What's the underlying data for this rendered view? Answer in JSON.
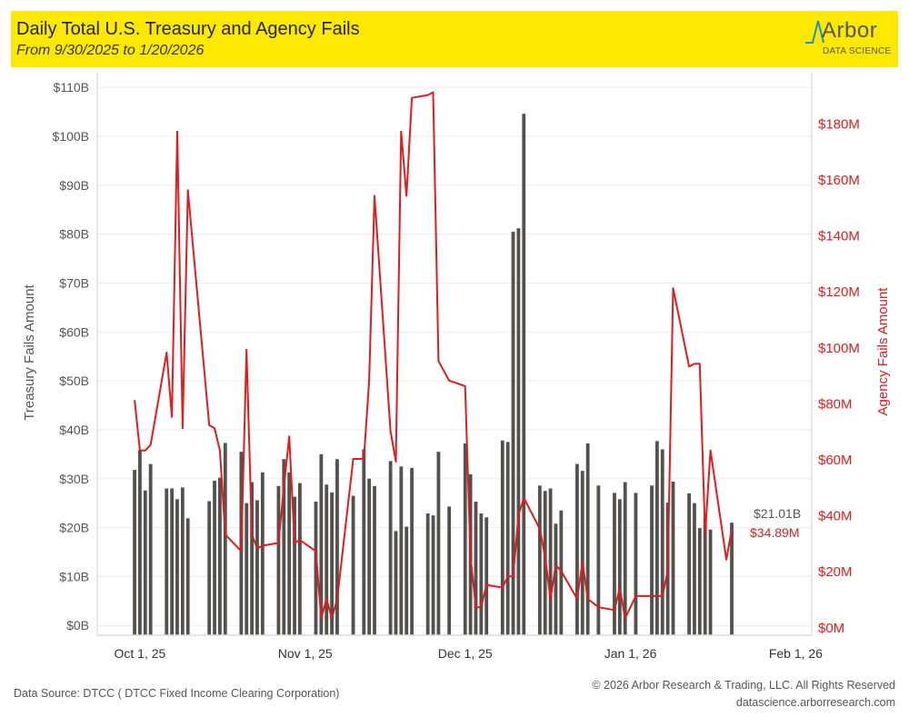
{
  "header": {
    "title": "Daily Total U.S. Treasury and Agency Fails",
    "subtitle": "From 9/30/2025 to 1/20/2026",
    "logo_word": "Arbor",
    "logo_sub": "DATA SCIENCE"
  },
  "footer": {
    "source": "Data Source: DTCC ( DTCC Fixed Income Clearing Corporation)",
    "copyright": "© 2026 Arbor Research & Trading, LLC. All Rights Reserved",
    "website": "datascience.arborresearch.com"
  },
  "colors": {
    "bar": "#54504c",
    "line": "#e41a1c",
    "header": "#fde800",
    "grid": "#ececec",
    "axis_text": "#555555"
  },
  "chart_data": {
    "type": "bar",
    "x_range": [
      "2025-09-23",
      "2026-02-04"
    ],
    "x_ticks": [
      {
        "date": "2025-10-01",
        "label": "Oct 1, 25"
      },
      {
        "date": "2025-11-01",
        "label": "Nov 1, 25"
      },
      {
        "date": "2025-12-01",
        "label": "Dec 1, 25"
      },
      {
        "date": "2026-01-01",
        "label": "Jan 1, 26"
      },
      {
        "date": "2026-02-01",
        "label": "Feb 1, 26"
      }
    ],
    "y_left": {
      "label": "Treasury Fails Amount",
      "range": [
        -2,
        113
      ],
      "ticks": [
        0,
        10,
        20,
        30,
        40,
        50,
        60,
        70,
        80,
        90,
        100,
        110
      ],
      "tick_labels": [
        "$0B",
        "$10B",
        "$20B",
        "$30B",
        "$40B",
        "$50B",
        "$60B",
        "$70B",
        "$80B",
        "$90B",
        "$100B",
        "$110B"
      ]
    },
    "y_right": {
      "label": "Agency Fails Amount",
      "range": [
        -3,
        198
      ],
      "ticks": [
        0,
        20,
        40,
        60,
        80,
        100,
        120,
        140,
        160,
        180
      ],
      "tick_labels": [
        "$0M",
        "$20M",
        "$40M",
        "$60M",
        "$80M",
        "$100M",
        "$120M",
        "$140M",
        "$160M",
        "$180M"
      ]
    },
    "legend": "none",
    "grid": "horizontal",
    "series": [
      {
        "name": "Treasury Fails Amount",
        "type": "bar",
        "axis": "left",
        "unit": "$B",
        "points": [
          [
            "2025-09-30",
            31.8
          ],
          [
            "2025-10-01",
            35.8
          ],
          [
            "2025-10-02",
            27.6
          ],
          [
            "2025-10-03",
            33.0
          ],
          [
            "2025-10-06",
            28.0
          ],
          [
            "2025-10-07",
            28.0
          ],
          [
            "2025-10-08",
            25.8
          ],
          [
            "2025-10-09",
            28.2
          ],
          [
            "2025-10-10",
            21.9
          ],
          [
            "2025-10-14",
            25.4
          ],
          [
            "2025-10-15",
            29.6
          ],
          [
            "2025-10-16",
            30.2
          ],
          [
            "2025-10-17",
            37.3
          ],
          [
            "2025-10-20",
            35.5
          ],
          [
            "2025-10-21",
            25.0
          ],
          [
            "2025-10-22",
            29.3
          ],
          [
            "2025-10-23",
            25.6
          ],
          [
            "2025-10-24",
            31.3
          ],
          [
            "2025-10-27",
            28.5
          ],
          [
            "2025-10-28",
            34.0
          ],
          [
            "2025-10-29",
            31.3
          ],
          [
            "2025-10-30",
            26.3
          ],
          [
            "2025-10-31",
            29.1
          ],
          [
            "2025-11-03",
            25.3
          ],
          [
            "2025-11-04",
            35.0
          ],
          [
            "2025-11-05",
            28.8
          ],
          [
            "2025-11-06",
            27.2
          ],
          [
            "2025-11-07",
            34.0
          ],
          [
            "2025-11-10",
            26.5
          ],
          [
            "2025-11-12",
            36.0
          ],
          [
            "2025-11-13",
            30.0
          ],
          [
            "2025-11-14",
            28.5
          ],
          [
            "2025-11-17",
            33.6
          ],
          [
            "2025-11-18",
            19.3
          ],
          [
            "2025-11-19",
            32.5
          ],
          [
            "2025-11-20",
            20.2
          ],
          [
            "2025-11-21",
            32.2
          ],
          [
            "2025-11-24",
            22.9
          ],
          [
            "2025-11-25",
            22.5
          ],
          [
            "2025-11-26",
            35.5
          ],
          [
            "2025-11-28",
            24.3
          ],
          [
            "2025-12-01",
            37.2
          ],
          [
            "2025-12-02",
            30.9
          ],
          [
            "2025-12-03",
            25.3
          ],
          [
            "2025-12-04",
            22.9
          ],
          [
            "2025-12-05",
            22.1
          ],
          [
            "2025-12-08",
            37.8
          ],
          [
            "2025-12-09",
            37.5
          ],
          [
            "2025-12-10",
            80.5
          ],
          [
            "2025-12-11",
            81.2
          ],
          [
            "2025-12-12",
            104.6
          ],
          [
            "2025-12-15",
            28.6
          ],
          [
            "2025-12-16",
            27.5
          ],
          [
            "2025-12-17",
            28.0
          ],
          [
            "2025-12-18",
            20.8
          ],
          [
            "2025-12-19",
            23.5
          ],
          [
            "2025-12-22",
            33.0
          ],
          [
            "2025-12-23",
            31.6
          ],
          [
            "2025-12-24",
            37.2
          ],
          [
            "2025-12-26",
            28.6
          ],
          [
            "2025-12-29",
            27.1
          ],
          [
            "2025-12-30",
            25.8
          ],
          [
            "2025-12-31",
            29.3
          ],
          [
            "2026-01-02",
            27.1
          ],
          [
            "2026-01-05",
            28.6
          ],
          [
            "2026-01-06",
            37.7
          ],
          [
            "2026-01-07",
            36.0
          ],
          [
            "2026-01-08",
            25.1
          ],
          [
            "2026-01-09",
            29.4
          ],
          [
            "2026-01-12",
            27.0
          ],
          [
            "2026-01-13",
            25.0
          ],
          [
            "2026-01-14",
            19.9
          ],
          [
            "2026-01-15",
            22.0
          ],
          [
            "2026-01-16",
            19.6
          ],
          [
            "2026-01-20",
            21.01
          ]
        ],
        "last_label": "$21.01B"
      },
      {
        "name": "Agency Fails Amount",
        "type": "line",
        "axis": "right",
        "unit": "$M",
        "points": [
          [
            "2025-09-30",
            81
          ],
          [
            "2025-10-01",
            63
          ],
          [
            "2025-10-02",
            63
          ],
          [
            "2025-10-03",
            65
          ],
          [
            "2025-10-06",
            98
          ],
          [
            "2025-10-07",
            75
          ],
          [
            "2025-10-08",
            177
          ],
          [
            "2025-10-09",
            71
          ],
          [
            "2025-10-10",
            156
          ],
          [
            "2025-10-14",
            72
          ],
          [
            "2025-10-15",
            71
          ],
          [
            "2025-10-16",
            63
          ],
          [
            "2025-10-17",
            33
          ],
          [
            "2025-10-20",
            27
          ],
          [
            "2025-10-21",
            99
          ],
          [
            "2025-10-22",
            33
          ],
          [
            "2025-10-23",
            28
          ],
          [
            "2025-10-24",
            29
          ],
          [
            "2025-10-27",
            30
          ],
          [
            "2025-10-28",
            50
          ],
          [
            "2025-10-29",
            68
          ],
          [
            "2025-10-30",
            30
          ],
          [
            "2025-10-31",
            31
          ],
          [
            "2025-11-03",
            27
          ],
          [
            "2025-11-04",
            3
          ],
          [
            "2025-11-05",
            10
          ],
          [
            "2025-11-06",
            3
          ],
          [
            "2025-11-07",
            10
          ],
          [
            "2025-11-10",
            60
          ],
          [
            "2025-11-11",
            60
          ],
          [
            "2025-11-12",
            60
          ],
          [
            "2025-11-13",
            88
          ],
          [
            "2025-11-14",
            154
          ],
          [
            "2025-11-17",
            70
          ],
          [
            "2025-11-18",
            59
          ],
          [
            "2025-11-19",
            177
          ],
          [
            "2025-11-20",
            154
          ],
          [
            "2025-11-21",
            189
          ],
          [
            "2025-11-24",
            190
          ],
          [
            "2025-11-25",
            191
          ],
          [
            "2025-11-26",
            95
          ],
          [
            "2025-11-28",
            88
          ],
          [
            "2025-12-01",
            86
          ],
          [
            "2025-12-02",
            25
          ],
          [
            "2025-12-03",
            7
          ],
          [
            "2025-12-04",
            7
          ],
          [
            "2025-12-05",
            15
          ],
          [
            "2025-12-08",
            14
          ],
          [
            "2025-12-09",
            18
          ],
          [
            "2025-12-10",
            18
          ],
          [
            "2025-12-11",
            40
          ],
          [
            "2025-12-12",
            46
          ],
          [
            "2025-12-15",
            35
          ],
          [
            "2025-12-16",
            25
          ],
          [
            "2025-12-17",
            10
          ],
          [
            "2025-12-18",
            22
          ],
          [
            "2025-12-19",
            20
          ],
          [
            "2025-12-22",
            10
          ],
          [
            "2025-12-23",
            23
          ],
          [
            "2025-12-24",
            10
          ],
          [
            "2025-12-26",
            7
          ],
          [
            "2025-12-29",
            6
          ],
          [
            "2025-12-30",
            14
          ],
          [
            "2025-12-31",
            3
          ],
          [
            "2026-01-02",
            11
          ],
          [
            "2026-01-05",
            11
          ],
          [
            "2026-01-06",
            11
          ],
          [
            "2026-01-07",
            11
          ],
          [
            "2026-01-08",
            20
          ],
          [
            "2026-01-09",
            121
          ],
          [
            "2026-01-12",
            93
          ],
          [
            "2026-01-13",
            94
          ],
          [
            "2026-01-14",
            94
          ],
          [
            "2026-01-15",
            33
          ],
          [
            "2026-01-16",
            63
          ],
          [
            "2026-01-19",
            24
          ],
          [
            "2026-01-20",
            34.89
          ]
        ],
        "last_label": "$34.89M"
      }
    ]
  }
}
